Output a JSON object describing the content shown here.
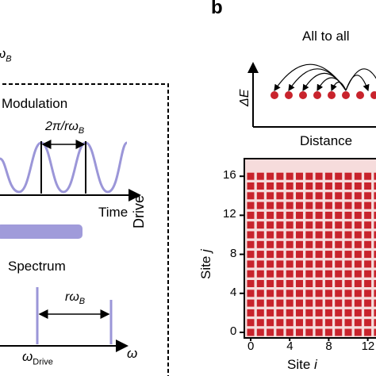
{
  "panel_a": {
    "top_label": "ω",
    "top_label_sub": "B",
    "box_label": "Drive",
    "modulation": {
      "title": "Modulation",
      "period_label": "2π/rω",
      "period_label_sub": "B",
      "x_axis_label": "Time"
    },
    "spectrum": {
      "title": "Spectrum",
      "spacing_label": "rω",
      "spacing_label_sub": "B",
      "peak_label": "ω",
      "peak_label_sub": "Drive",
      "x_axis_label": "ω"
    }
  },
  "panel_b": {
    "letter": "b",
    "title": "All to all",
    "energy_axis_label": "ΔE",
    "distance_axis_label": "Distance",
    "heatmap": {
      "x_label": "Site",
      "x_label_var": "i",
      "y_label": "Site",
      "y_label_var": "j",
      "x_ticks": [
        "0",
        "4",
        "8",
        "12"
      ],
      "y_ticks": [
        "0",
        "4",
        "8",
        "12",
        "16"
      ],
      "cell_color": "#c8232c",
      "background_color": "#f6dcdc",
      "grid_size": 17
    }
  }
}
